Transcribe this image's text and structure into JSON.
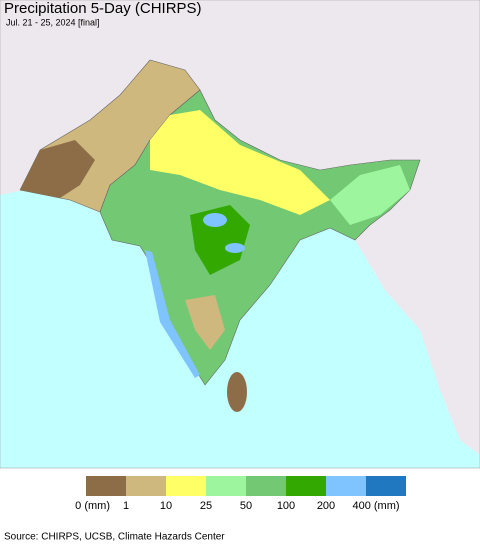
{
  "header": {
    "title": "Precipitation 5-Day (CHIRPS)",
    "subtitle": "Jul. 21 - 25, 2024 [final]"
  },
  "legend": {
    "colors": [
      "#8c6d47",
      "#cfb87e",
      "#ffff66",
      "#9df59d",
      "#72c873",
      "#33a800",
      "#80c4ff",
      "#1f78c0"
    ],
    "labels": [
      "0 (mm)",
      "1",
      "10",
      "25",
      "50",
      "100",
      "200",
      "400 (mm)"
    ]
  },
  "footer": {
    "source": "Source: CHIRPS, UCSB, Climate Hazards Center"
  }
}
